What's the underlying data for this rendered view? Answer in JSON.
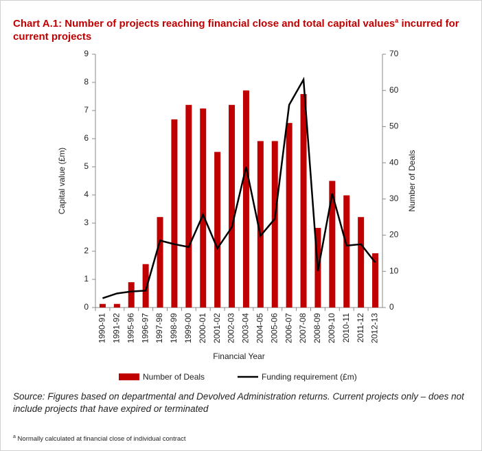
{
  "chart_data": {
    "type": "bar_line",
    "title": "Chart A.1: Number of projects reaching financial close and total capital values",
    "title_marker": "a",
    "title_end": "incurred for current projects",
    "categories": [
      "1990-91",
      "1991-92",
      "1995-96",
      "1996-97",
      "1997-98",
      "1998-99",
      "1999-00",
      "2000-01",
      "2001-02",
      "2002-03",
      "2003-04",
      "2004-05",
      "2005-06",
      "2006-07",
      "2007-08",
      "2008-09",
      "2009-10",
      "2010-11",
      "2011-12",
      "2012-13"
    ],
    "series": [
      {
        "name": "Number of Deals",
        "type": "bar",
        "axis": "y2",
        "color": "#c00000",
        "values": [
          1,
          1,
          7,
          12,
          25,
          52,
          56,
          55,
          43,
          56,
          60,
          46,
          46,
          51,
          59,
          22,
          35,
          31,
          25,
          15
        ]
      },
      {
        "name": "Funding requirement (£m)",
        "type": "line",
        "axis": "y",
        "color": "#000000",
        "values": [
          0.33,
          0.5,
          0.57,
          0.6,
          2.38,
          2.25,
          2.15,
          3.3,
          2.1,
          2.85,
          5.0,
          2.55,
          3.15,
          7.2,
          8.1,
          1.3,
          4.05,
          2.2,
          2.25,
          1.6
        ]
      }
    ],
    "xlabel": "Financial Year",
    "ylabel": "Capital value (£m)",
    "y2label": "Number of Deals",
    "ylim": [
      0,
      9
    ],
    "yticks": [
      0,
      1,
      2,
      3,
      4,
      5,
      6,
      7,
      8,
      9
    ],
    "y2lim": [
      0,
      70
    ],
    "y2ticks": [
      0,
      10,
      20,
      30,
      40,
      50,
      60,
      70
    ],
    "grid": false,
    "legend": "bottom",
    "source": "Source: Figures based on departmental and Devolved Administration returns. Current projects only – does not include projects that have expired or terminated",
    "footnote_marker": "a",
    "footnote": "Normally calculated at financial close of individual contract"
  }
}
